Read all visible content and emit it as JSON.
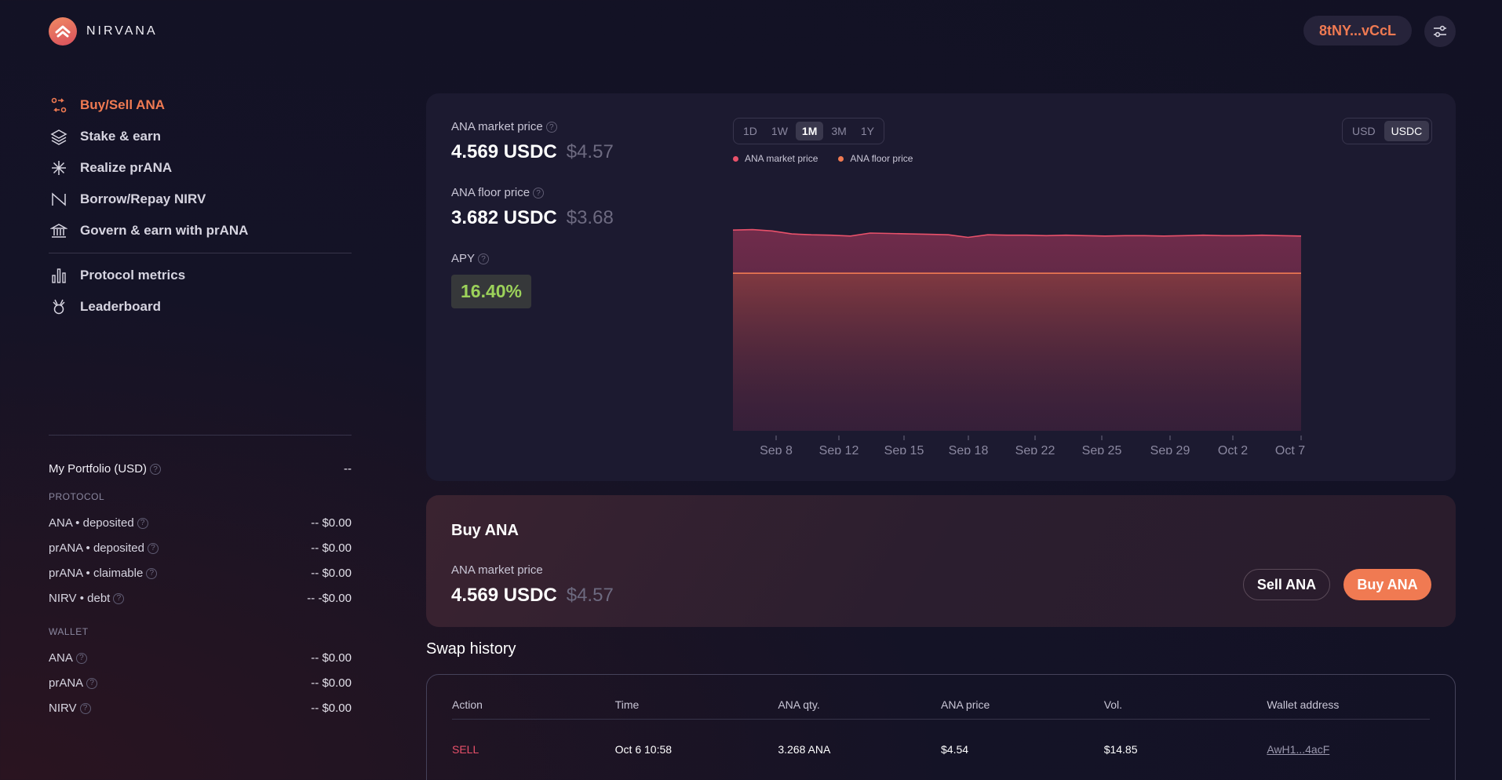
{
  "brand": {
    "name": "NIRVANA"
  },
  "header": {
    "wallet": "8tNY...vCcL"
  },
  "nav": {
    "items": [
      {
        "label": "Buy/Sell ANA",
        "icon": "swap-icon"
      },
      {
        "label": "Stake & earn",
        "icon": "layers-icon"
      },
      {
        "label": "Realize prANA",
        "icon": "sparkle-icon"
      },
      {
        "label": "Borrow/Repay NIRV",
        "icon": "borrow-icon"
      },
      {
        "label": "Govern & earn with prANA",
        "icon": "bank-icon"
      }
    ],
    "secondary": [
      {
        "label": "Protocol metrics",
        "icon": "bar-chart-icon"
      },
      {
        "label": "Leaderboard",
        "icon": "medal-icon"
      }
    ]
  },
  "portfolio": {
    "title": "My Portfolio (USD)",
    "total": "--",
    "protocol_label": "PROTOCOL",
    "protocol": [
      {
        "label": "ANA • deposited",
        "value": "--  $0.00"
      },
      {
        "label": "prANA • deposited",
        "value": "--  $0.00"
      },
      {
        "label": "prANA • claimable",
        "value": "--  $0.00"
      },
      {
        "label": "NIRV • debt",
        "value": "--  -$0.00"
      }
    ],
    "wallet_label": "WALLET",
    "wallet": [
      {
        "label": "ANA",
        "value": "--  $0.00"
      },
      {
        "label": "prANA",
        "value": "--  $0.00"
      },
      {
        "label": "NIRV",
        "value": "--  $0.00"
      }
    ]
  },
  "stats": {
    "market_label": "ANA market price",
    "market_value": "4.569 USDC",
    "market_usd": "$4.57",
    "floor_label": "ANA floor price",
    "floor_value": "3.682 USDC",
    "floor_usd": "$3.68",
    "apy_label": "APY",
    "apy_value": "16.40%"
  },
  "range_tabs": [
    "1D",
    "1W",
    "1M",
    "3M",
    "1Y"
  ],
  "range_selected": "1M",
  "unit_tabs": [
    "USD",
    "USDC"
  ],
  "unit_selected": "USDC",
  "chart_data": {
    "type": "area",
    "series": [
      {
        "name": "ANA market price",
        "color": "#e8516a",
        "values": [
          4.69,
          4.7,
          4.67,
          4.6,
          4.58,
          4.57,
          4.55,
          4.62,
          4.61,
          4.6,
          4.59,
          4.58,
          4.52,
          4.58,
          4.57,
          4.57,
          4.56,
          4.57,
          4.56,
          4.55,
          4.56,
          4.56,
          4.55,
          4.56,
          4.57,
          4.56,
          4.56,
          4.57,
          4.56,
          4.55
        ]
      },
      {
        "name": "ANA floor price",
        "color": "#f07a52",
        "values": [
          3.682,
          3.682,
          3.682,
          3.682,
          3.682,
          3.682,
          3.682,
          3.682,
          3.682,
          3.682,
          3.682,
          3.682,
          3.682,
          3.682,
          3.682,
          3.682,
          3.682,
          3.682,
          3.682,
          3.682,
          3.682,
          3.682,
          3.682,
          3.682,
          3.682,
          3.682,
          3.682,
          3.682,
          3.682,
          3.682
        ]
      }
    ],
    "x_ticks": [
      "Sep 8",
      "Sep 12",
      "Sep 15",
      "Sep 18",
      "Sep 22",
      "Sep 25",
      "Sep 29",
      "Oct 2",
      "Oct 7"
    ],
    "ylim": [
      0,
      5.5
    ],
    "legend": "top-left",
    "grid": false
  },
  "buy": {
    "title": "Buy ANA",
    "market_label": "ANA market price",
    "market_value": "4.569 USDC",
    "market_usd": "$4.57",
    "sell_btn": "Sell ANA",
    "buy_btn": "Buy ANA"
  },
  "swap": {
    "title": "Swap history",
    "headers": [
      "Action",
      "Time",
      "ANA qty.",
      "ANA price",
      "Vol.",
      "Wallet address"
    ],
    "rows": [
      {
        "action": "SELL",
        "time": "Oct 6 10:58",
        "qty": "3.268 ANA",
        "price": "$4.54",
        "vol": "$14.85",
        "wallet": "AwH1...4acF"
      }
    ]
  }
}
